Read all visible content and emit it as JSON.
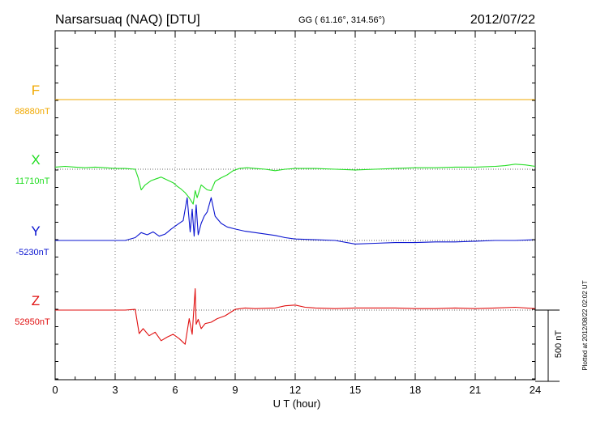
{
  "header": {
    "station": "Narsarsuaq (NAQ)  [DTU]",
    "coords": "GG ( 61.16°, 314.56°)",
    "date": "2012/07/22"
  },
  "footer_note": "Plotted at 2012/08/22 02:02 UT",
  "scale_bar_label": "500 nT",
  "chart_data": {
    "type": "line",
    "xlabel": "U T (hour)",
    "xlim": [
      0,
      24
    ],
    "xticks": [
      "0",
      "3",
      "6",
      "9",
      "12",
      "15",
      "18",
      "21",
      "24"
    ],
    "scale_nT": 500,
    "grid": true,
    "series": [
      {
        "name": "F",
        "baseline_label": "88880nT",
        "color": "#f0a800",
        "x": [
          0,
          24
        ],
        "y": [
          0,
          0
        ]
      },
      {
        "name": "X",
        "baseline_label": "11710nT",
        "color": "#22dd22",
        "x": [
          0,
          0.5,
          1,
          1.5,
          2,
          2.5,
          3,
          3.5,
          4,
          4.15,
          4.3,
          4.5,
          4.8,
          5.0,
          5.3,
          5.6,
          5.9,
          6.1,
          6.3,
          6.5,
          6.7,
          6.9,
          7.0,
          7.1,
          7.3,
          7.6,
          7.8,
          8.0,
          8.3,
          8.6,
          8.9,
          9.2,
          9.6,
          10,
          10.5,
          11,
          11.5,
          12,
          13,
          14,
          15,
          16,
          17,
          18,
          19,
          20,
          21,
          22,
          22.5,
          23,
          23.5,
          24
        ],
        "y": [
          15,
          20,
          15,
          10,
          15,
          10,
          5,
          5,
          0,
          -60,
          -145,
          -110,
          -80,
          -70,
          -55,
          -75,
          -95,
          -120,
          -140,
          -165,
          -200,
          -245,
          -150,
          -200,
          -110,
          -145,
          -150,
          -85,
          -60,
          -40,
          -10,
          5,
          10,
          5,
          0,
          -10,
          0,
          5,
          5,
          0,
          -5,
          0,
          5,
          10,
          10,
          15,
          15,
          20,
          25,
          35,
          30,
          20
        ]
      },
      {
        "name": "Y",
        "baseline_label": "-5230nT",
        "color": "#0a14d0",
        "x": [
          0,
          1,
          2,
          3,
          3.5,
          4,
          4.3,
          4.6,
          4.9,
          5.2,
          5.5,
          5.8,
          6.1,
          6.4,
          6.6,
          6.75,
          6.85,
          6.95,
          7.05,
          7.15,
          7.3,
          7.45,
          7.6,
          7.8,
          8.0,
          8.3,
          8.6,
          9.0,
          9.5,
          10,
          10.5,
          11,
          11.5,
          12,
          13,
          14,
          15,
          16,
          17,
          18,
          19,
          20,
          21,
          22,
          23,
          24
        ],
        "y": [
          0,
          0,
          0,
          0,
          0,
          20,
          55,
          40,
          60,
          30,
          45,
          80,
          110,
          140,
          300,
          60,
          220,
          30,
          250,
          40,
          120,
          170,
          200,
          300,
          170,
          120,
          95,
          80,
          65,
          55,
          45,
          35,
          20,
          10,
          5,
          0,
          -25,
          -20,
          -15,
          -15,
          -10,
          -10,
          -5,
          0,
          0,
          5
        ]
      },
      {
        "name": "Z",
        "baseline_label": "52950nT",
        "color": "#e01010",
        "x": [
          0,
          1,
          2,
          3,
          3.5,
          4,
          4.2,
          4.4,
          4.7,
          5.0,
          5.3,
          5.6,
          5.9,
          6.2,
          6.5,
          6.7,
          6.85,
          7.0,
          7.05,
          7.15,
          7.3,
          7.5,
          7.8,
          8.1,
          8.5,
          9.0,
          9.5,
          10,
          11,
          11.5,
          12,
          12.5,
          13,
          14,
          15,
          16,
          17,
          18,
          19,
          20,
          21,
          22,
          23,
          24
        ],
        "y": [
          0,
          0,
          0,
          0,
          0,
          5,
          -165,
          -130,
          -180,
          -155,
          -215,
          -190,
          -170,
          -200,
          -240,
          -60,
          -170,
          150,
          -100,
          -65,
          -130,
          -95,
          -85,
          -60,
          -40,
          5,
          15,
          10,
          15,
          30,
          35,
          20,
          15,
          10,
          15,
          15,
          15,
          10,
          10,
          15,
          10,
          15,
          20,
          10
        ]
      }
    ]
  }
}
